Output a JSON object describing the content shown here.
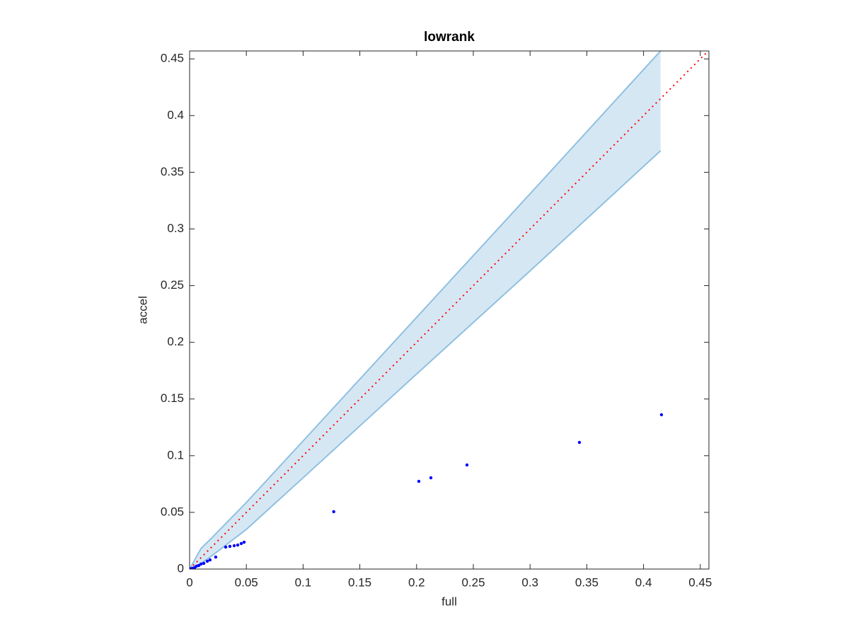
{
  "chart_data": {
    "type": "scatter",
    "title": "lowrank",
    "x_label": "full",
    "y_label": "accel",
    "xlim": [
      0,
      0.4576
    ],
    "ylim": [
      0,
      0.457
    ],
    "xticks": [
      0,
      0.05,
      0.1,
      0.15,
      0.2,
      0.25,
      0.3,
      0.35,
      0.4,
      0.45
    ],
    "yticks": [
      0,
      0.05,
      0.1,
      0.15,
      0.2,
      0.25,
      0.3,
      0.35,
      0.4,
      0.45
    ],
    "grid": false,
    "band": {
      "color": "#8fc0e0",
      "fill": "#d6e7f4",
      "x": [
        0,
        0.01,
        0.02,
        0.05,
        0.1,
        0.2,
        0.3,
        0.415
      ],
      "lower": [
        0,
        0.005,
        0.012,
        0.035,
        0.0805,
        0.172,
        0.263,
        0.369
      ],
      "upper": [
        0,
        0.018,
        0.028,
        0.0587,
        0.113,
        0.222,
        0.331,
        0.457
      ]
    },
    "reference_line": {
      "color": "#ff0000",
      "x": [
        0,
        0.4576
      ],
      "y": [
        0,
        0.4576
      ]
    },
    "points": {
      "color": "#0000ff",
      "x": [
        0.0003,
        0.0012,
        0.0025,
        0.0044,
        0.006,
        0.008,
        0.01,
        0.0125,
        0.0156,
        0.018,
        0.023,
        0.0318,
        0.0355,
        0.0393,
        0.0424,
        0.0455,
        0.048,
        0.127,
        0.202,
        0.2126,
        0.2444,
        0.3435,
        0.4158
      ],
      "y": [
        0.0001,
        0.0003,
        0.0006,
        0.0012,
        0.0025,
        0.0031,
        0.0044,
        0.005,
        0.0069,
        0.0081,
        0.0106,
        0.0194,
        0.02,
        0.0206,
        0.0212,
        0.0225,
        0.0237,
        0.0506,
        0.0774,
        0.0805,
        0.0918,
        0.1117,
        0.1361
      ]
    }
  }
}
